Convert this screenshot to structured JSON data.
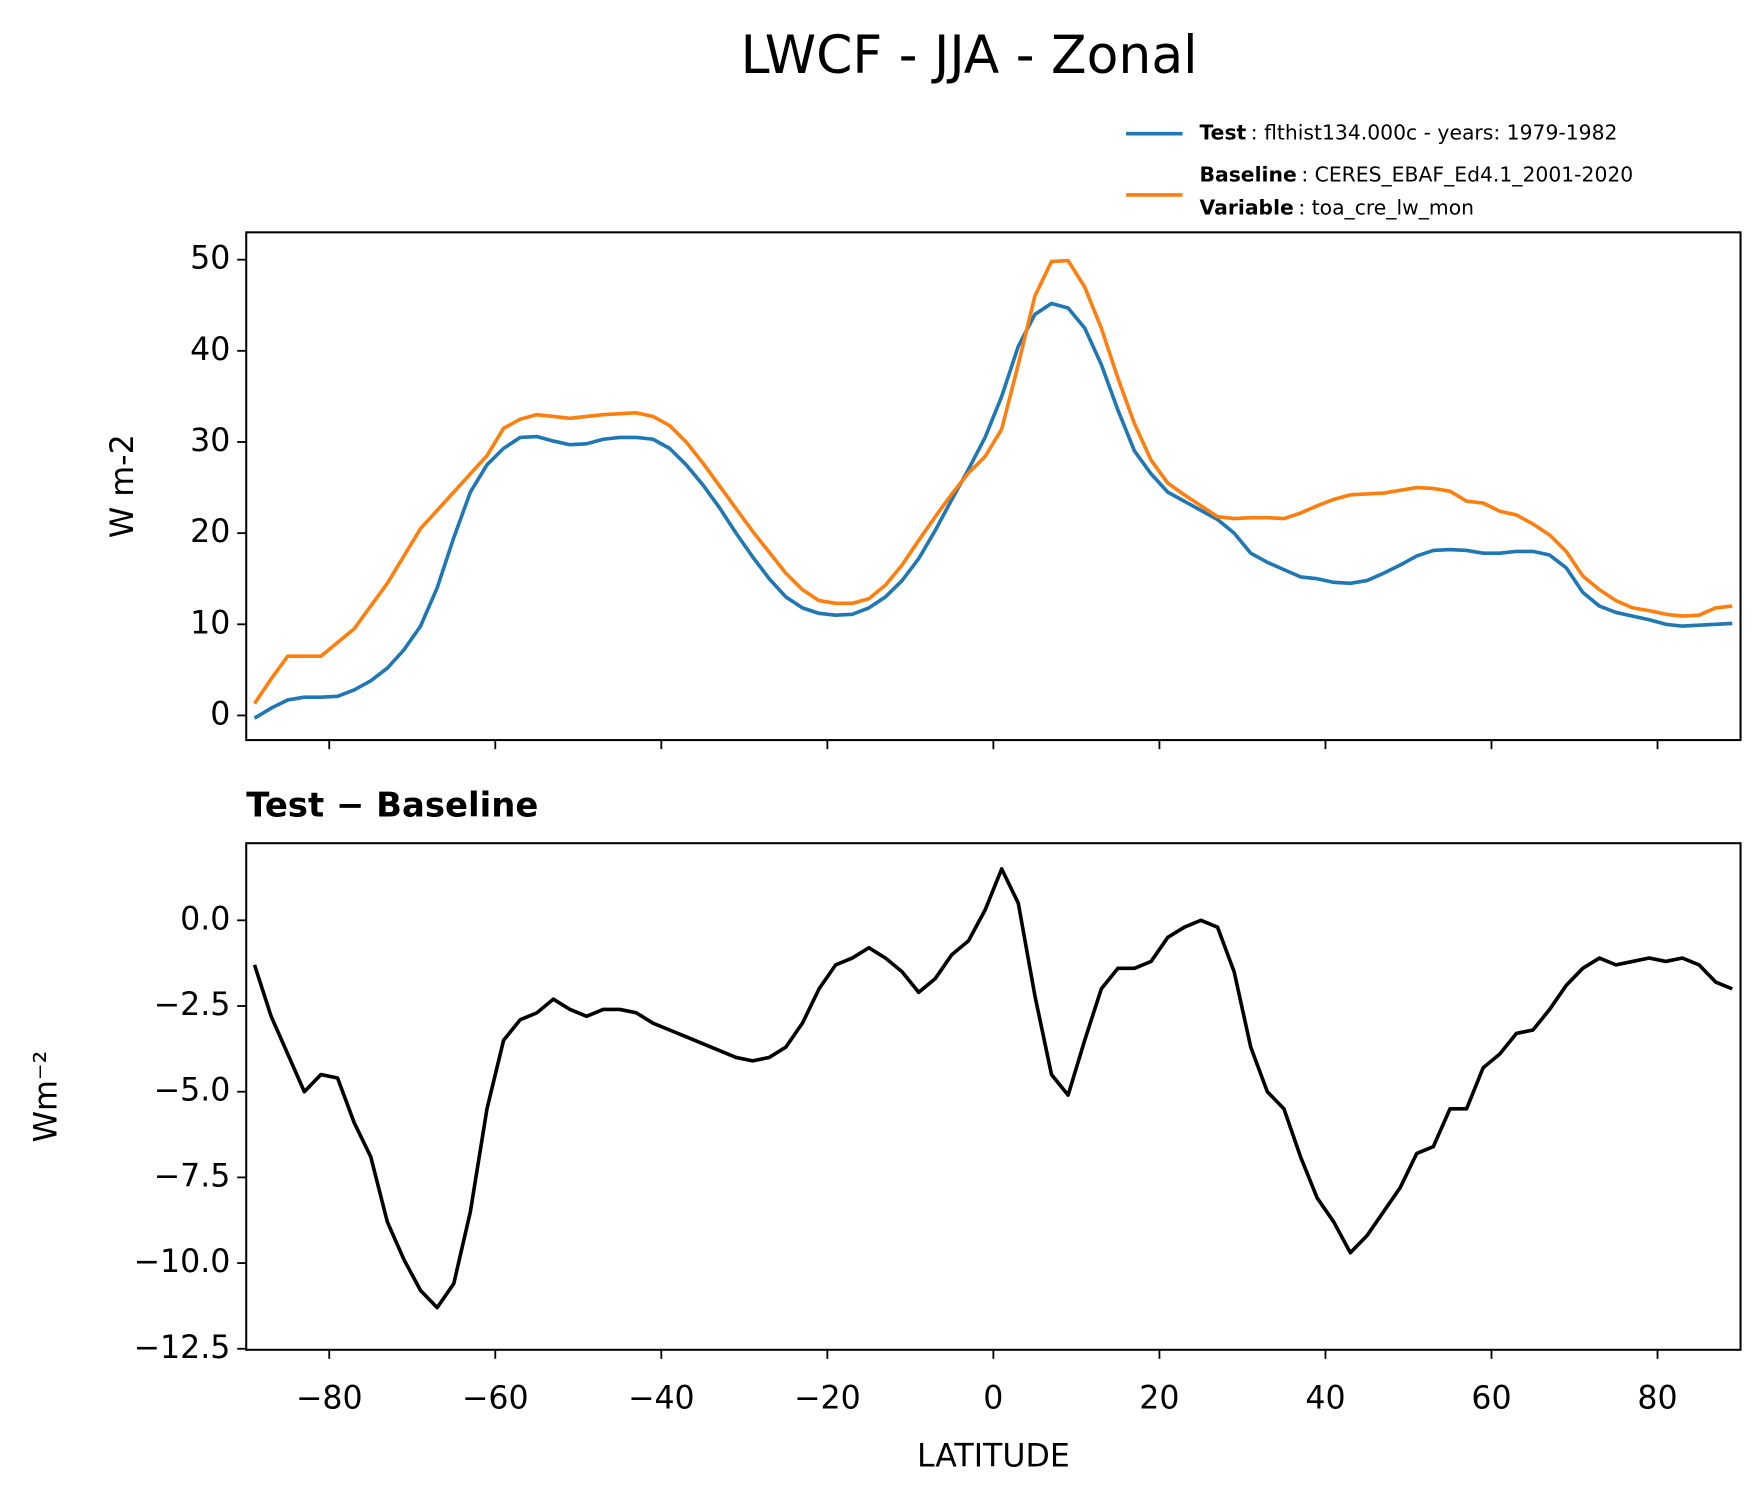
{
  "title": "LWCF - JJA - Zonal",
  "chart_data": [
    {
      "type": "line",
      "x": [
        -89,
        -87,
        -85,
        -83,
        -81,
        -79,
        -77,
        -75,
        -73,
        -71,
        -69,
        -67,
        -65,
        -63,
        -61,
        -59,
        -57,
        -55,
        -53,
        -51,
        -49,
        -47,
        -45,
        -43,
        -41,
        -39,
        -37,
        -35,
        -33,
        -31,
        -29,
        -27,
        -25,
        -23,
        -21,
        -19,
        -17,
        -15,
        -13,
        -11,
        -9,
        -7,
        -5,
        -3,
        -1,
        1,
        3,
        5,
        7,
        9,
        11,
        13,
        15,
        17,
        19,
        21,
        23,
        25,
        27,
        29,
        31,
        33,
        35,
        37,
        39,
        41,
        43,
        45,
        47,
        49,
        51,
        53,
        55,
        57,
        59,
        61,
        63,
        65,
        67,
        69,
        71,
        73,
        75,
        77,
        79,
        81,
        83,
        85,
        87,
        89
      ],
      "series": [
        {
          "name": "Test",
          "description": ": flthist134.000c - years: 1979-1982",
          "color": "#1f77b4",
          "values": [
            -0.3,
            0.8,
            1.7,
            2.0,
            2.0,
            2.1,
            2.8,
            3.8,
            5.2,
            7.2,
            9.8,
            14,
            19.5,
            24.5,
            27.5,
            29.3,
            30.5,
            30.6,
            30.1,
            29.7,
            29.8,
            30.3,
            30.5,
            30.5,
            30.3,
            29.3,
            27.5,
            25.3,
            22.8,
            20.0,
            17.4,
            15.0,
            13.0,
            11.8,
            11.2,
            11.0,
            11.1,
            11.8,
            13.0,
            14.8,
            17.2,
            20.3,
            23.7,
            27.0,
            30.5,
            35,
            40.5,
            44,
            45.2,
            44.7,
            42.5,
            38.5,
            33.5,
            29,
            26.5,
            24.5,
            23.5,
            22.5,
            21.5,
            20,
            17.8,
            16.8,
            16.0,
            15.2,
            15.0,
            14.6,
            14.5,
            14.8,
            15.6,
            16.5,
            17.5,
            18.1,
            18.2,
            18.1,
            17.8,
            17.8,
            18.0,
            18.0,
            17.6,
            16.2,
            13.5,
            12.0,
            11.3,
            10.9,
            10.5,
            10.0,
            9.8,
            9.9,
            10.0,
            10.1
          ]
        },
        {
          "name": "Baseline",
          "description": ": CERES_EBAF_Ed4.1_2001-2020",
          "variable_label": "Variable",
          "variable": ": toa_cre_lw_mon",
          "color": "#ff7f0e",
          "values": [
            1.3,
            4,
            6.5,
            6.5,
            6.5,
            8,
            9.5,
            12,
            14.5,
            17.5,
            20.5,
            22.5,
            24.5,
            26.5,
            28.5,
            31.5,
            32.5,
            33,
            32.8,
            32.6,
            32.8,
            33,
            33.1,
            33.2,
            32.8,
            31.8,
            30,
            27.7,
            25.2,
            22.7,
            20.2,
            17.9,
            15.6,
            13.8,
            12.6,
            12.3,
            12.3,
            12.8,
            14.3,
            16.5,
            19.2,
            21.8,
            24.3,
            26.6,
            28.4,
            31.4,
            38.5,
            46,
            49.8,
            49.9,
            47,
            42.5,
            37,
            32,
            28,
            25.5,
            24.2,
            23.0,
            21.8,
            21.6,
            21.7,
            21.7,
            21.6,
            22.2,
            23.0,
            23.7,
            24.2,
            24.3,
            24.4,
            24.7,
            25.0,
            24.9,
            24.6,
            23.5,
            23.3,
            22.4,
            22.0,
            21.0,
            19.8,
            18.0,
            15.3,
            13.8,
            12.6,
            11.8,
            11.5,
            11.1,
            10.9,
            11.0,
            11.8,
            12.0
          ]
        }
      ],
      "y_label": "W m-2",
      "xlim": [
        -90,
        90
      ],
      "xticks": [
        -80,
        -60,
        -40,
        -20,
        0,
        20,
        40,
        60,
        80
      ],
      "xtick_labels": false,
      "ylim": [
        -2.7,
        53
      ],
      "yticks": [
        0,
        10,
        20,
        30,
        40,
        50
      ]
    },
    {
      "type": "line",
      "title": "Test − Baseline",
      "x": [
        -89,
        -87,
        -85,
        -83,
        -81,
        -79,
        -77,
        -75,
        -73,
        -71,
        -69,
        -67,
        -65,
        -63,
        -61,
        -59,
        -57,
        -55,
        -53,
        -51,
        -49,
        -47,
        -45,
        -43,
        -41,
        -39,
        -37,
        -35,
        -33,
        -31,
        -29,
        -27,
        -25,
        -23,
        -21,
        -19,
        -17,
        -15,
        -13,
        -11,
        -9,
        -7,
        -5,
        -3,
        -1,
        1,
        3,
        5,
        7,
        9,
        11,
        13,
        15,
        17,
        19,
        21,
        23,
        25,
        27,
        29,
        31,
        33,
        35,
        37,
        39,
        41,
        43,
        45,
        47,
        49,
        51,
        53,
        55,
        57,
        59,
        61,
        63,
        65,
        67,
        69,
        71,
        73,
        75,
        77,
        79,
        81,
        83,
        85,
        87,
        89
      ],
      "series": [
        {
          "color": "#000000",
          "values": [
            -1.3,
            -2.8,
            -3.9,
            -5.0,
            -4.5,
            -4.6,
            -5.9,
            -6.9,
            -8.8,
            -9.9,
            -10.8,
            -11.3,
            -10.6,
            -8.5,
            -5.5,
            -3.5,
            -2.9,
            -2.7,
            -2.3,
            -2.6,
            -2.8,
            -2.6,
            -2.6,
            -2.7,
            -3.0,
            -3.2,
            -3.4,
            -3.6,
            -3.8,
            -4.0,
            -4.1,
            -4.0,
            -3.7,
            -3.0,
            -2.0,
            -1.3,
            -1.1,
            -0.8,
            -1.1,
            -1.5,
            -2.1,
            -1.7,
            -1.0,
            -0.6,
            0.3,
            1.5,
            0.5,
            -2.2,
            -4.5,
            -5.1,
            -3.5,
            -2.0,
            -1.4,
            -1.4,
            -1.2,
            -0.5,
            -0.2,
            0.0,
            -0.2,
            -1.5,
            -3.7,
            -5.0,
            -5.5,
            -6.9,
            -8.1,
            -8.8,
            -9.7,
            -9.2,
            -8.5,
            -7.8,
            -6.8,
            -6.6,
            -5.5,
            -5.5,
            -4.3,
            -3.9,
            -3.3,
            -3.2,
            -2.6,
            -1.9,
            -1.4,
            -1.1,
            -1.3,
            -1.2,
            -1.1,
            -1.2,
            -1.1,
            -1.3,
            -1.8,
            -2.0
          ]
        }
      ],
      "x_label": "LATITUDE",
      "y_label": "Wm⁻²",
      "xlim": [
        -90,
        90
      ],
      "xticks": [
        {
          "value": -80,
          "label": "−80"
        },
        {
          "value": -60,
          "label": "−60"
        },
        {
          "value": -40,
          "label": "−40"
        },
        {
          "value": -20,
          "label": "−20"
        },
        0,
        20,
        40,
        60,
        80
      ],
      "ylim": [
        -12.53,
        2.25
      ],
      "yticks": [
        {
          "value": 0,
          "label": "0.0"
        },
        {
          "value": -2.5,
          "label": "−2.5"
        },
        {
          "value": -5,
          "label": "−5.0"
        },
        {
          "value": -7.5,
          "label": "−7.5"
        },
        {
          "value": -10,
          "label": "−10.0"
        },
        {
          "value": -12.5,
          "label": "−12.5"
        }
      ]
    }
  ]
}
